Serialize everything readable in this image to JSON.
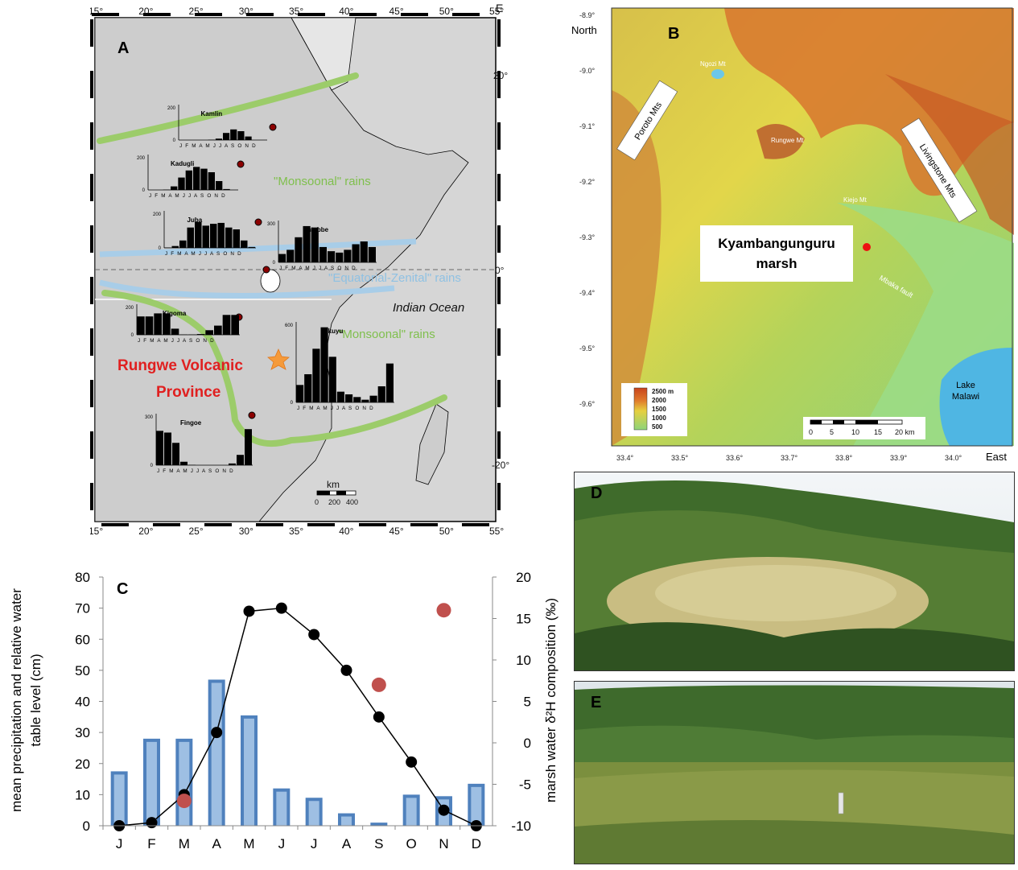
{
  "panel_a": {
    "letter": "A",
    "north_label": "N",
    "east_label": "E",
    "lon_ticks": [
      "15°",
      "20°",
      "25°",
      "30°",
      "35°",
      "40°",
      "45°",
      "50°",
      "55°"
    ],
    "lat_ticks": [
      "20°",
      "0°",
      "-20°"
    ],
    "ocean_label": "Indian Ocean",
    "rain_labels": [
      "\"Monsoonal\" rains",
      "\"Equatorial-Zenital\" rains",
      "\"Monsoonal\" rains"
    ],
    "province_label_line1": "Rungwe Volcanic",
    "province_label_line2": "Province",
    "scale_title": "km",
    "scale_ticks": [
      "0",
      "200",
      "400"
    ],
    "month_initials": "J F M A M J J A S O N D",
    "stations": [
      {
        "name": "Kamlin",
        "ymax": "200",
        "values": [
          0,
          0,
          0,
          0,
          2,
          8,
          40,
          60,
          50,
          20,
          0,
          0
        ]
      },
      {
        "name": "Kadugli",
        "ymax": "200",
        "values": [
          0,
          0,
          2,
          20,
          70,
          110,
          130,
          120,
          100,
          50,
          5,
          0
        ]
      },
      {
        "name": "Juba",
        "ymax": "200",
        "values": [
          2,
          10,
          40,
          110,
          140,
          120,
          130,
          135,
          110,
          100,
          40,
          5
        ]
      },
      {
        "name": "Entebbe",
        "ymax": "300",
        "values": [
          60,
          90,
          180,
          260,
          250,
          110,
          80,
          70,
          90,
          130,
          150,
          110
        ]
      },
      {
        "name": "Kigoma",
        "ymax": "200",
        "values": [
          120,
          120,
          140,
          140,
          40,
          2,
          2,
          5,
          30,
          60,
          130,
          130
        ]
      },
      {
        "name": "Tukuyu",
        "ymax": "600",
        "values": [
          130,
          210,
          400,
          560,
          340,
          80,
          60,
          40,
          20,
          50,
          120,
          290
        ]
      },
      {
        "name": "Fingoe",
        "ymax": "300",
        "values": [
          200,
          190,
          130,
          20,
          2,
          0,
          0,
          0,
          0,
          10,
          60,
          210
        ]
      }
    ]
  },
  "panel_b": {
    "letter": "B",
    "north_label": "North",
    "east_label": "East",
    "lat_ticks": [
      "-8.9°",
      "-9.0°",
      "-9.1°",
      "-9.2°",
      "-9.3°",
      "-9.4°",
      "-9.5°",
      "-9.6°"
    ],
    "lon_ticks": [
      "33.4°",
      "33.5°",
      "33.6°",
      "33.7°",
      "33.8°",
      "33.9°",
      "34.0°"
    ],
    "site_label_line1": "Kyambangunguru",
    "site_label_line2": "marsh",
    "range_labels": [
      "Poroto Mts",
      "Livingstone Mts"
    ],
    "peak_labels": [
      "Ngozi Mt",
      "Rungwe Mt",
      "Kiejo Mt"
    ],
    "fault_label": "Mbaka fault",
    "lake_label_line1": "Lake",
    "lake_label_line2": "Malawi",
    "elevation_legend": [
      "2500 m",
      "2000",
      "1500",
      "1000",
      "500"
    ],
    "scale_ticks": [
      "0",
      "5",
      "10",
      "15",
      "20 km"
    ]
  },
  "panel_c": {
    "letter": "C"
  },
  "panel_d": {
    "letter": "D"
  },
  "panel_e": {
    "letter": "E"
  },
  "chart_data": {
    "type": "bar",
    "categories": [
      "J",
      "F",
      "M",
      "A",
      "M",
      "J",
      "J",
      "A",
      "S",
      "O",
      "N",
      "D"
    ],
    "ylabel_line1": "mean precipitation and relative water",
    "ylabel_line2": "table level (cm)",
    "y2label": "marsh water δ²H  composition (‰)",
    "ylim": [
      0,
      80
    ],
    "y2lim": [
      -10,
      20
    ],
    "yticks": [
      "0",
      "10",
      "20",
      "30",
      "40",
      "50",
      "60",
      "70",
      "80"
    ],
    "y2ticks": [
      "-10",
      "-5",
      "0",
      "5",
      "10",
      "15",
      "20"
    ],
    "series": [
      {
        "type": "bar",
        "color": "#4f81bd",
        "values": [
          17.5,
          28,
          28,
          47,
          35.5,
          12,
          9,
          4,
          1,
          10,
          9.5,
          13.5
        ]
      },
      {
        "type": "line",
        "color": "#000000",
        "values": [
          0,
          1,
          10,
          30,
          69,
          70,
          61.5,
          50,
          35,
          20.5,
          5,
          0
        ]
      },
      {
        "type": "scatter",
        "axis": "y2",
        "color": "#c0504d",
        "points": [
          {
            "x": "M",
            "y": -7
          },
          {
            "x": "S",
            "y": 7
          },
          {
            "x": "N",
            "y": 16
          }
        ]
      }
    ]
  }
}
